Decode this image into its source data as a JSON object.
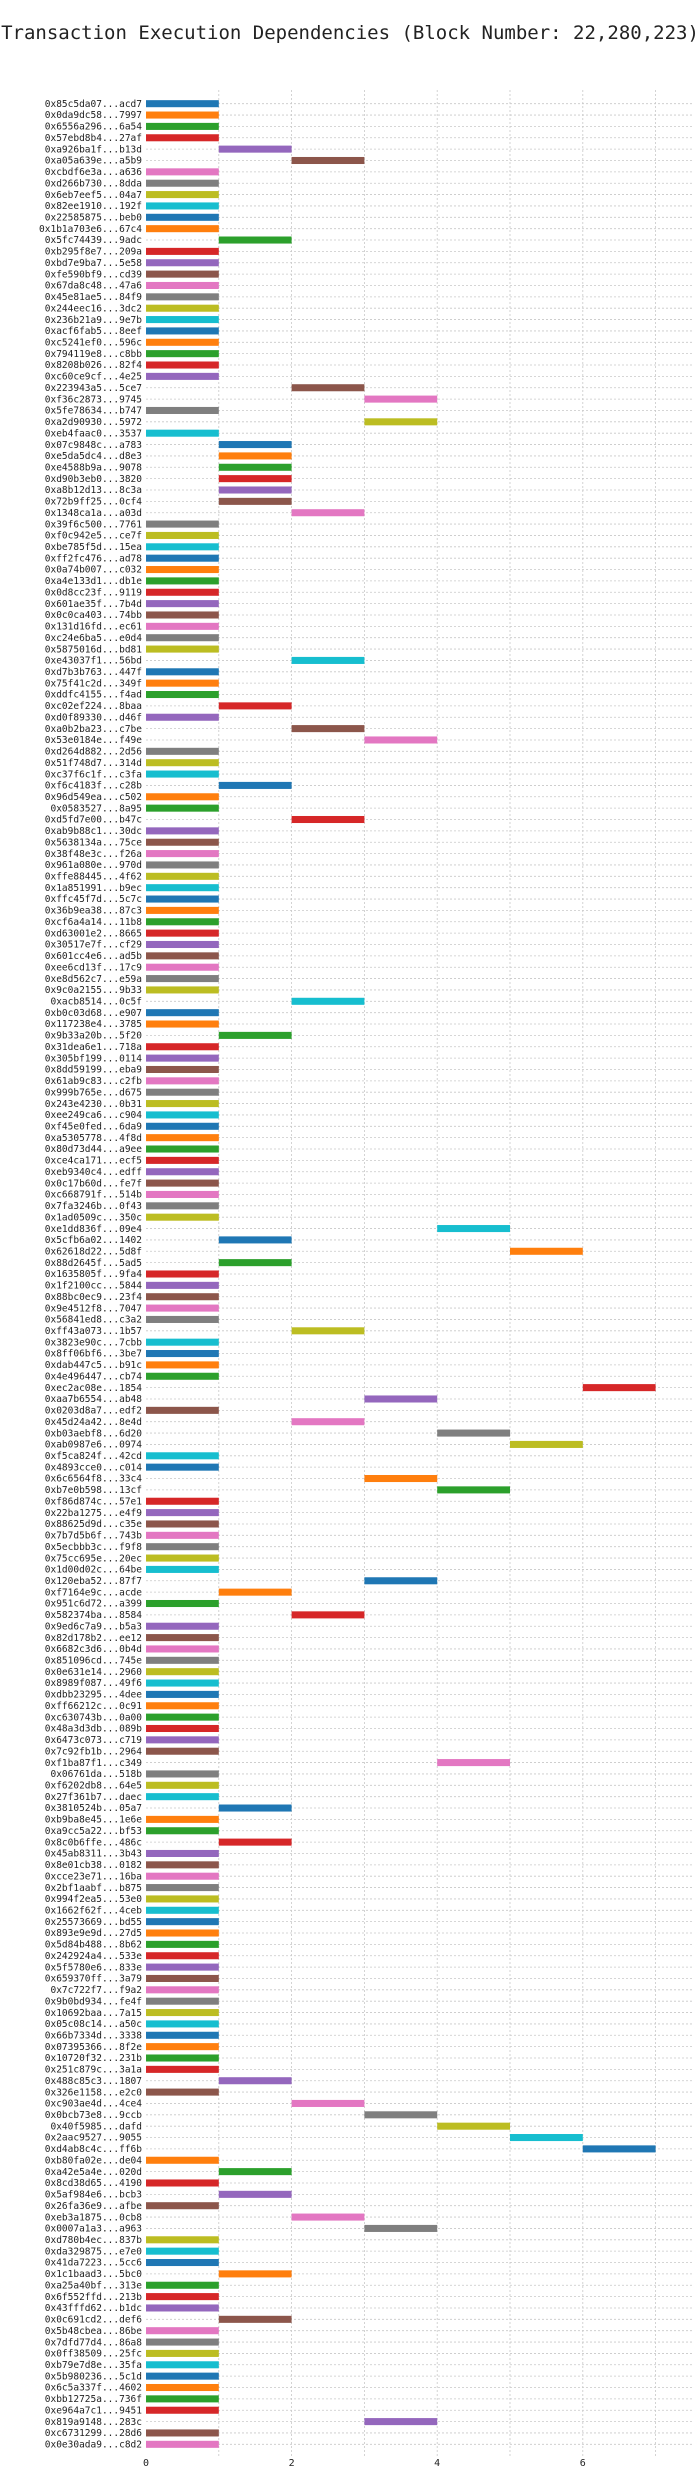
{
  "chart_data": {
    "type": "bar",
    "orientation": "horizontal-gantt",
    "title": "Transaction Execution Dependencies (Block Number: 22,280,223)",
    "xlabel": "",
    "ylabel": "",
    "xlim": [
      0,
      7.5
    ],
    "xticks": [
      0,
      2,
      4,
      6
    ],
    "grid": true,
    "colors": [
      "#1f77b4",
      "#ff7f0e",
      "#2ca02c",
      "#d62728",
      "#9467bd",
      "#8c564b",
      "#e377c2",
      "#7f7f7f",
      "#bcbd22",
      "#17becf"
    ],
    "bars": [
      {
        "label": "0x85c5da07...acd7",
        "start": 0,
        "end": 1
      },
      {
        "label": "0x0da9dc58...7997",
        "start": 0,
        "end": 1
      },
      {
        "label": "0x6556a296...6a54",
        "start": 0,
        "end": 1
      },
      {
        "label": "0x57ebd8b4...27af",
        "start": 0,
        "end": 1
      },
      {
        "label": "0xa926ba1f...b13d",
        "start": 1,
        "end": 2
      },
      {
        "label": "0xa05a639e...a5b9",
        "start": 2,
        "end": 3
      },
      {
        "label": "0xcbdf6e3a...a636",
        "start": 0,
        "end": 1
      },
      {
        "label": "0xd266b730...8dda",
        "start": 0,
        "end": 1
      },
      {
        "label": "0x6eb7eef5...04a7",
        "start": 0,
        "end": 1
      },
      {
        "label": "0x82ee1910...192f",
        "start": 0,
        "end": 1
      },
      {
        "label": "0x22585875...beb0",
        "start": 0,
        "end": 1
      },
      {
        "label": "0x1b1a703e6...67c4",
        "start": 0,
        "end": 1
      },
      {
        "label": "0x5fc74439...9adc",
        "start": 1,
        "end": 2
      },
      {
        "label": "0xb295f8e7...209a",
        "start": 0,
        "end": 1
      },
      {
        "label": "0xbd7e9ba7...5e58",
        "start": 0,
        "end": 1
      },
      {
        "label": "0xfe590bf9...cd39",
        "start": 0,
        "end": 1
      },
      {
        "label": "0x67da8c48...47a6",
        "start": 0,
        "end": 1
      },
      {
        "label": "0x45e81ae5...84f9",
        "start": 0,
        "end": 1
      },
      {
        "label": "0x244eec16...3dc2",
        "start": 0,
        "end": 1
      },
      {
        "label": "0x236b21a9...9e7b",
        "start": 0,
        "end": 1
      },
      {
        "label": "0xacf6fab5...8eef",
        "start": 0,
        "end": 1
      },
      {
        "label": "0xc5241ef0...596c",
        "start": 0,
        "end": 1
      },
      {
        "label": "0x794119e8...c8bb",
        "start": 0,
        "end": 1
      },
      {
        "label": "0x8208b026...82f4",
        "start": 0,
        "end": 1
      },
      {
        "label": "0xc60ce9cf...4e25",
        "start": 0,
        "end": 1
      },
      {
        "label": "0x223943a5...5ce7",
        "start": 2,
        "end": 3
      },
      {
        "label": "0xf36c2873...9745",
        "start": 3,
        "end": 4
      },
      {
        "label": "0x5fe78634...b747",
        "start": 0,
        "end": 1
      },
      {
        "label": "0xa2d90930...5972",
        "start": 3,
        "end": 4
      },
      {
        "label": "0xeb4faac0...3537",
        "start": 0,
        "end": 1
      },
      {
        "label": "0x07c9848c...a783",
        "start": 1,
        "end": 2
      },
      {
        "label": "0xe5da5dc4...d8e3",
        "start": 1,
        "end": 2
      },
      {
        "label": "0xe4588b9a...9078",
        "start": 1,
        "end": 2
      },
      {
        "label": "0xd90b3eb0...3820",
        "start": 1,
        "end": 2
      },
      {
        "label": "0xa8b12d13...8c3a",
        "start": 1,
        "end": 2
      },
      {
        "label": "0x72b9ff25...0cf4",
        "start": 1,
        "end": 2
      },
      {
        "label": "0x1348ca1a...a03d",
        "start": 2,
        "end": 3
      },
      {
        "label": "0x39f6c500...7761",
        "start": 0,
        "end": 1
      },
      {
        "label": "0xf0c942e5...ce7f",
        "start": 0,
        "end": 1
      },
      {
        "label": "0xbe785f5d...15ea",
        "start": 0,
        "end": 1
      },
      {
        "label": "0xff2fc476...ad78",
        "start": 0,
        "end": 1
      },
      {
        "label": "0x0a74b007...c032",
        "start": 0,
        "end": 1
      },
      {
        "label": "0xa4e133d1...db1e",
        "start": 0,
        "end": 1
      },
      {
        "label": "0x0d8cc23f...9119",
        "start": 0,
        "end": 1
      },
      {
        "label": "0x601ae35f...7b4d",
        "start": 0,
        "end": 1
      },
      {
        "label": "0x0c0ca403...74bb",
        "start": 0,
        "end": 1
      },
      {
        "label": "0x131d16fd...ec61",
        "start": 0,
        "end": 1
      },
      {
        "label": "0xc24e6ba5...e0d4",
        "start": 0,
        "end": 1
      },
      {
        "label": "0x5875016d...bd81",
        "start": 0,
        "end": 1
      },
      {
        "label": "0xe43037f1...56bd",
        "start": 2,
        "end": 3
      },
      {
        "label": "0xd7b3b763...447f",
        "start": 0,
        "end": 1
      },
      {
        "label": "0x75f41c2d...349f",
        "start": 0,
        "end": 1
      },
      {
        "label": "0xddfc4155...f4ad",
        "start": 0,
        "end": 1
      },
      {
        "label": "0xc02ef224...8baa",
        "start": 1,
        "end": 2
      },
      {
        "label": "0xd0f89330...d46f",
        "start": 0,
        "end": 1
      },
      {
        "label": "0xa0b2ba23...c7be",
        "start": 2,
        "end": 3
      },
      {
        "label": "0x53e0184e...f49e",
        "start": 3,
        "end": 4
      },
      {
        "label": "0xd264d882...2d56",
        "start": 0,
        "end": 1
      },
      {
        "label": "0x51f748d7...314d",
        "start": 0,
        "end": 1
      },
      {
        "label": "0xc37f6c1f...c3fa",
        "start": 0,
        "end": 1
      },
      {
        "label": "0xf6c4183f...c28b",
        "start": 1,
        "end": 2
      },
      {
        "label": "0x96d549ea...c502",
        "start": 0,
        "end": 1
      },
      {
        "label": "0x0583527...8a95",
        "start": 0,
        "end": 1
      },
      {
        "label": "0xd5fd7e00...b47c",
        "start": 2,
        "end": 3
      },
      {
        "label": "0xab9b88c1...30dc",
        "start": 0,
        "end": 1
      },
      {
        "label": "0x5638134a...75ce",
        "start": 0,
        "end": 1
      },
      {
        "label": "0x38f48e3c...f26a",
        "start": 0,
        "end": 1
      },
      {
        "label": "0x961a080e...970d",
        "start": 0,
        "end": 1
      },
      {
        "label": "0xffe88445...4f62",
        "start": 0,
        "end": 1
      },
      {
        "label": "0x1a851991...b9ec",
        "start": 0,
        "end": 1
      },
      {
        "label": "0xffc45f7d...5c7c",
        "start": 0,
        "end": 1
      },
      {
        "label": "0x36b9ea38...87c3",
        "start": 0,
        "end": 1
      },
      {
        "label": "0xcf6a4a14...11b8",
        "start": 0,
        "end": 1
      },
      {
        "label": "0xd63001e2...8665",
        "start": 0,
        "end": 1
      },
      {
        "label": "0x30517e7f...cf29",
        "start": 0,
        "end": 1
      },
      {
        "label": "0x601cc4e6...ad5b",
        "start": 0,
        "end": 1
      },
      {
        "label": "0xee6cd13f...17c9",
        "start": 0,
        "end": 1
      },
      {
        "label": "0xe8d562c7...e59a",
        "start": 0,
        "end": 1
      },
      {
        "label": "0x9c0a2155...9b33",
        "start": 0,
        "end": 1
      },
      {
        "label": "0xacb8514...0c5f",
        "start": 2,
        "end": 3
      },
      {
        "label": "0xb0c03d68...e907",
        "start": 0,
        "end": 1
      },
      {
        "label": "0x117238e4...3785",
        "start": 0,
        "end": 1
      },
      {
        "label": "0x9b33a20b...5f20",
        "start": 1,
        "end": 2
      },
      {
        "label": "0x31dea6e1...718a",
        "start": 0,
        "end": 1
      },
      {
        "label": "0x305bf199...0114",
        "start": 0,
        "end": 1
      },
      {
        "label": "0x8dd59199...eba9",
        "start": 0,
        "end": 1
      },
      {
        "label": "0x61ab9c83...c2fb",
        "start": 0,
        "end": 1
      },
      {
        "label": "0x999b765e...d675",
        "start": 0,
        "end": 1
      },
      {
        "label": "0x243e4230...0b31",
        "start": 0,
        "end": 1
      },
      {
        "label": "0xee249ca6...c904",
        "start": 0,
        "end": 1
      },
      {
        "label": "0xf45e0fed...6da9",
        "start": 0,
        "end": 1
      },
      {
        "label": "0xa5305778...4f8d",
        "start": 0,
        "end": 1
      },
      {
        "label": "0x80d73d44...a9ee",
        "start": 0,
        "end": 1
      },
      {
        "label": "0xce4ca171...ecf5",
        "start": 0,
        "end": 1
      },
      {
        "label": "0xeb9340c4...edff",
        "start": 0,
        "end": 1
      },
      {
        "label": "0x0c17b60d...fe7f",
        "start": 0,
        "end": 1
      },
      {
        "label": "0xc668791f...514b",
        "start": 0,
        "end": 1
      },
      {
        "label": "0x7fa3246b...0f43",
        "start": 0,
        "end": 1
      },
      {
        "label": "0x1ad0509c...350c",
        "start": 0,
        "end": 1
      },
      {
        "label": "0xe1dd836f...09e4",
        "start": 4,
        "end": 5
      },
      {
        "label": "0x5cfb6a02...1402",
        "start": 1,
        "end": 2
      },
      {
        "label": "0x62618d22...5d8f",
        "start": 5,
        "end": 6
      },
      {
        "label": "0x88d2645f...5ad5",
        "start": 1,
        "end": 2
      },
      {
        "label": "0x1635805f...9fa4",
        "start": 0,
        "end": 1
      },
      {
        "label": "0x1f2100cc...5844",
        "start": 0,
        "end": 1
      },
      {
        "label": "0x88bc0ec9...23f4",
        "start": 0,
        "end": 1
      },
      {
        "label": "0x9e4512f8...7047",
        "start": 0,
        "end": 1
      },
      {
        "label": "0x56841ed8...c3a2",
        "start": 0,
        "end": 1
      },
      {
        "label": "0xff43a073...1b57",
        "start": 2,
        "end": 3
      },
      {
        "label": "0x3823e90c...7cbb",
        "start": 0,
        "end": 1
      },
      {
        "label": "0x8ff06bf6...3be7",
        "start": 0,
        "end": 1
      },
      {
        "label": "0xdab447c5...b91c",
        "start": 0,
        "end": 1
      },
      {
        "label": "0x4e496447...cb74",
        "start": 0,
        "end": 1
      },
      {
        "label": "0xec2ac08e...1854",
        "start": 6,
        "end": 7
      },
      {
        "label": "0xaa7b6554...ab48",
        "start": 3,
        "end": 4
      },
      {
        "label": "0x0203d8a7...edf2",
        "start": 0,
        "end": 1
      },
      {
        "label": "0x45d24a42...8e4d",
        "start": 2,
        "end": 3
      },
      {
        "label": "0xb03aebf8...6d20",
        "start": 4,
        "end": 5
      },
      {
        "label": "0xab0987e6...0974",
        "start": 5,
        "end": 6
      },
      {
        "label": "0xf5ca824f...42cd",
        "start": 0,
        "end": 1
      },
      {
        "label": "0x4893cce0...c014",
        "start": 0,
        "end": 1
      },
      {
        "label": "0x6c6564f8...33c4",
        "start": 3,
        "end": 4
      },
      {
        "label": "0xb7e0b598...13cf",
        "start": 4,
        "end": 5
      },
      {
        "label": "0xf86d874c...57e1",
        "start": 0,
        "end": 1
      },
      {
        "label": "0x22ba1275...e4f9",
        "start": 0,
        "end": 1
      },
      {
        "label": "0x88625d9d...c35e",
        "start": 0,
        "end": 1
      },
      {
        "label": "0x7b7d5b6f...743b",
        "start": 0,
        "end": 1
      },
      {
        "label": "0x5ecbbb3c...f9f8",
        "start": 0,
        "end": 1
      },
      {
        "label": "0x75cc695e...20ec",
        "start": 0,
        "end": 1
      },
      {
        "label": "0x1d00d02c...64be",
        "start": 0,
        "end": 1
      },
      {
        "label": "0x120eba52...87f7",
        "start": 3,
        "end": 4
      },
      {
        "label": "0xf7164e9c...acde",
        "start": 1,
        "end": 2
      },
      {
        "label": "0x951c6d72...a399",
        "start": 0,
        "end": 1
      },
      {
        "label": "0x582374ba...8584",
        "start": 2,
        "end": 3
      },
      {
        "label": "0x9ed6c7a9...b5a3",
        "start": 0,
        "end": 1
      },
      {
        "label": "0x82d178b2...ee12",
        "start": 0,
        "end": 1
      },
      {
        "label": "0x6682c3d6...0b4d",
        "start": 0,
        "end": 1
      },
      {
        "label": "0x851096cd...745e",
        "start": 0,
        "end": 1
      },
      {
        "label": "0x0e631e14...2960",
        "start": 0,
        "end": 1
      },
      {
        "label": "0x8989f087...49f6",
        "start": 0,
        "end": 1
      },
      {
        "label": "0xdbb23295...4dee",
        "start": 0,
        "end": 1
      },
      {
        "label": "0xff66212c...0c91",
        "start": 0,
        "end": 1
      },
      {
        "label": "0xc630743b...0a00",
        "start": 0,
        "end": 1
      },
      {
        "label": "0x48a3d3db...089b",
        "start": 0,
        "end": 1
      },
      {
        "label": "0x6473c073...c719",
        "start": 0,
        "end": 1
      },
      {
        "label": "0x7c92fb1b...2964",
        "start": 0,
        "end": 1
      },
      {
        "label": "0xf1ba87f1...c349",
        "start": 4,
        "end": 5
      },
      {
        "label": "0x06761da...518b",
        "start": 0,
        "end": 1
      },
      {
        "label": "0xf6202db8...64e5",
        "start": 0,
        "end": 1
      },
      {
        "label": "0x27f361b7...daec",
        "start": 0,
        "end": 1
      },
      {
        "label": "0x3810524b...05a7",
        "start": 1,
        "end": 2
      },
      {
        "label": "0xb9ba8e45...1e6e",
        "start": 0,
        "end": 1
      },
      {
        "label": "0xa9cc5a22...bf53",
        "start": 0,
        "end": 1
      },
      {
        "label": "0x8c0b6ffe...486c",
        "start": 1,
        "end": 2
      },
      {
        "label": "0x45ab8311...3b43",
        "start": 0,
        "end": 1
      },
      {
        "label": "0x8e01cb38...0182",
        "start": 0,
        "end": 1
      },
      {
        "label": "0xcce23e71...16ba",
        "start": 0,
        "end": 1
      },
      {
        "label": "0x2bf1aabf...b875",
        "start": 0,
        "end": 1
      },
      {
        "label": "0x994f2ea5...53e0",
        "start": 0,
        "end": 1
      },
      {
        "label": "0x1662f62f...4ceb",
        "start": 0,
        "end": 1
      },
      {
        "label": "0x25573669...bd55",
        "start": 0,
        "end": 1
      },
      {
        "label": "0x893e9e9d...27d5",
        "start": 0,
        "end": 1
      },
      {
        "label": "0x5d84b488...8b62",
        "start": 0,
        "end": 1
      },
      {
        "label": "0x242924a4...533e",
        "start": 0,
        "end": 1
      },
      {
        "label": "0x5f5780e6...833e",
        "start": 0,
        "end": 1
      },
      {
        "label": "0x659370ff...3a79",
        "start": 0,
        "end": 1
      },
      {
        "label": "0x7c722f7...f9a2",
        "start": 0,
        "end": 1
      },
      {
        "label": "0x9b0bd934...fe4f",
        "start": 0,
        "end": 1
      },
      {
        "label": "0x10692baa...7a15",
        "start": 0,
        "end": 1
      },
      {
        "label": "0x05c08c14...a50c",
        "start": 0,
        "end": 1
      },
      {
        "label": "0x66b7334d...3338",
        "start": 0,
        "end": 1
      },
      {
        "label": "0x07395366...8f2e",
        "start": 0,
        "end": 1
      },
      {
        "label": "0x10720f32...231b",
        "start": 0,
        "end": 1
      },
      {
        "label": "0x251c879c...3a1a",
        "start": 0,
        "end": 1
      },
      {
        "label": "0x488c85c3...1807",
        "start": 1,
        "end": 2
      },
      {
        "label": "0x326e1158...e2c0",
        "start": 0,
        "end": 1
      },
      {
        "label": "0xc903ae4d...4ce4",
        "start": 2,
        "end": 3
      },
      {
        "label": "0x0bcb73e8...9ccb",
        "start": 3,
        "end": 4
      },
      {
        "label": "0x40f5985...dafd",
        "start": 4,
        "end": 5
      },
      {
        "label": "0x2aac9527...9055",
        "start": 5,
        "end": 6
      },
      {
        "label": "0xd4ab8c4c...ff6b",
        "start": 6,
        "end": 7
      },
      {
        "label": "0xb80fa02e...de04",
        "start": 0,
        "end": 1
      },
      {
        "label": "0xa42e5a4e...020d",
        "start": 1,
        "end": 2
      },
      {
        "label": "0x8cd38d65...4190",
        "start": 0,
        "end": 1
      },
      {
        "label": "0x5af984e6...bcb3",
        "start": 1,
        "end": 2
      },
      {
        "label": "0x26fa36e9...afbe",
        "start": 0,
        "end": 1
      },
      {
        "label": "0xeb3a1875...0cb8",
        "start": 2,
        "end": 3
      },
      {
        "label": "0x0007a1a3...a963",
        "start": 3,
        "end": 4
      },
      {
        "label": "0xd780b4ec...837b",
        "start": 0,
        "end": 1
      },
      {
        "label": "0xda329875...e7e0",
        "start": 0,
        "end": 1
      },
      {
        "label": "0x41da7223...5cc6",
        "start": 0,
        "end": 1
      },
      {
        "label": "0x1c1baad3...5bc0",
        "start": 1,
        "end": 2
      },
      {
        "label": "0xa25a40bf...313e",
        "start": 0,
        "end": 1
      },
      {
        "label": "0x6f552ffd...213b",
        "start": 0,
        "end": 1
      },
      {
        "label": "0x43fffd62...b1dc",
        "start": 0,
        "end": 1
      },
      {
        "label": "0x0c691cd2...def6",
        "start": 1,
        "end": 2
      },
      {
        "label": "0x5b48cbea...86be",
        "start": 0,
        "end": 1
      },
      {
        "label": "0x7dfd77d4...86a8",
        "start": 0,
        "end": 1
      },
      {
        "label": "0x0ff38509...25fc",
        "start": 0,
        "end": 1
      },
      {
        "label": "0xb79e7d8e...35fa",
        "start": 0,
        "end": 1
      },
      {
        "label": "0x5b980236...5c1d",
        "start": 0,
        "end": 1
      },
      {
        "label": "0x6c5a337f...4602",
        "start": 0,
        "end": 1
      },
      {
        "label": "0xbb12725a...736f",
        "start": 0,
        "end": 1
      },
      {
        "label": "0xe964a7c1...9451",
        "start": 0,
        "end": 1
      },
      {
        "label": "0x819a9148...283c",
        "start": 3,
        "end": 4
      },
      {
        "label": "0xc6731299...28d6",
        "start": 0,
        "end": 1
      },
      {
        "label": "0x0e30ada9...c8d2",
        "start": 0,
        "end": 1
      }
    ]
  }
}
